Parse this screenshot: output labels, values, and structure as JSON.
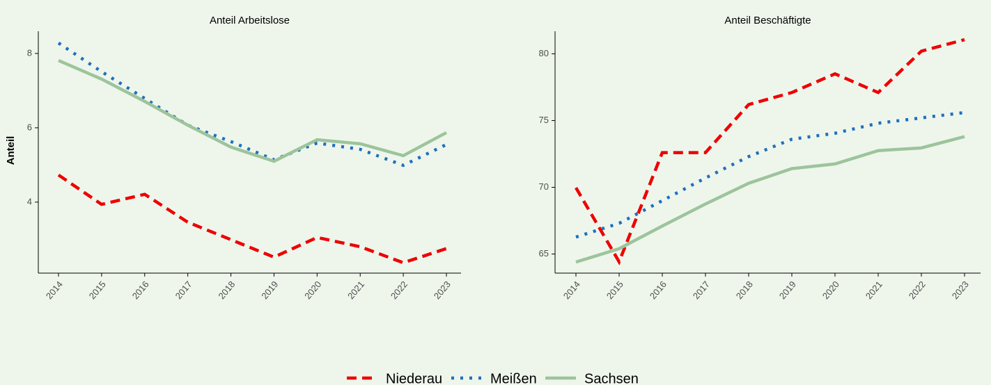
{
  "chart_data": [
    {
      "type": "line",
      "title": "Anteil Arbeitslose",
      "ylabel": "Anteil",
      "categories": [
        "2014",
        "2015",
        "2016",
        "2017",
        "2018",
        "2019",
        "2020",
        "2021",
        "2022",
        "2023"
      ],
      "ylim": [
        2.09,
        8.69
      ],
      "yticks": [
        4,
        6,
        8
      ],
      "series": [
        {
          "name": "Niederau",
          "color": "#ee0000",
          "line_style": "dashed",
          "values": [
            4.73,
            3.94,
            4.21,
            3.46,
            2.99,
            2.52,
            3.05,
            2.8,
            2.37,
            2.75
          ]
        },
        {
          "name": "Meißen",
          "color": "#1f6fc0",
          "line_style": "dotted",
          "values": [
            8.28,
            7.51,
            6.79,
            6.07,
            5.63,
            5.14,
            5.59,
            5.42,
            4.99,
            5.55
          ]
        },
        {
          "name": "Sachsen",
          "color": "#9dc49b",
          "line_style": "solid",
          "values": [
            7.81,
            7.31,
            6.71,
            6.07,
            5.48,
            5.1,
            5.68,
            5.57,
            5.25,
            5.87
          ]
        }
      ]
    },
    {
      "type": "line",
      "title": "Anteil Beschäftigte",
      "categories": [
        "2014",
        "2015",
        "2016",
        "2017",
        "2018",
        "2019",
        "2020",
        "2021",
        "2022",
        "2023"
      ],
      "ylim": [
        63.57,
        81.95
      ],
      "yticks": [
        65,
        70,
        75,
        80
      ],
      "series": [
        {
          "name": "Niederau",
          "color": "#ee0000",
          "line_style": "dashed",
          "values": [
            69.97,
            64.42,
            72.6,
            72.6,
            76.2,
            77.1,
            78.5,
            77.1,
            80.2,
            81.06
          ]
        },
        {
          "name": "Meißen",
          "color": "#1f6fc0",
          "line_style": "dotted",
          "values": [
            66.27,
            67.3,
            69.0,
            70.7,
            72.3,
            73.6,
            74.05,
            74.8,
            75.2,
            75.6
          ]
        },
        {
          "name": "Sachsen",
          "color": "#9dc49b",
          "line_style": "solid",
          "values": [
            64.4,
            65.4,
            67.1,
            68.75,
            70.3,
            71.4,
            71.75,
            72.75,
            72.95,
            73.8
          ]
        }
      ]
    }
  ]
}
